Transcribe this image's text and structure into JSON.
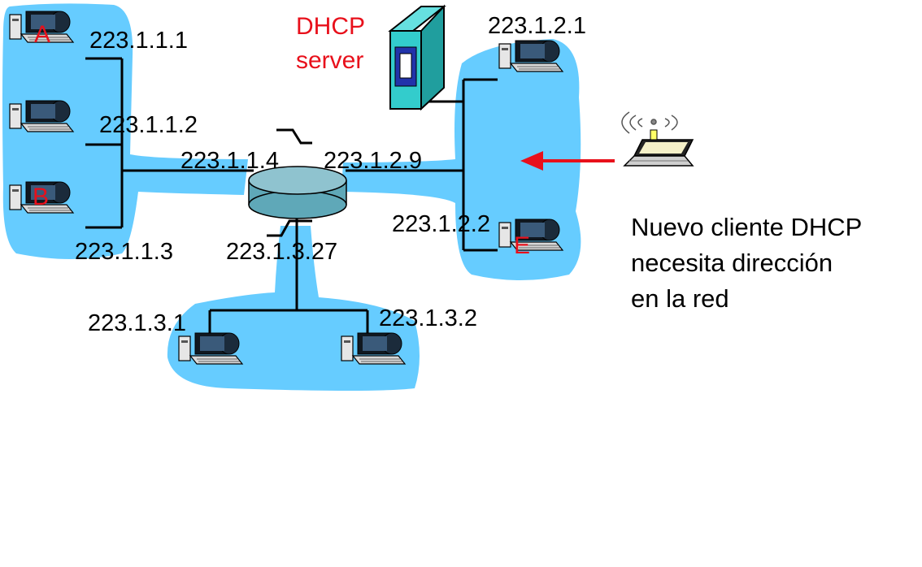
{
  "dhcp_server": {
    "line1": "DHCP",
    "line2": "server"
  },
  "hosts": {
    "a": "A",
    "b": "B",
    "e": "E"
  },
  "ips": {
    "ip_1_1_1": "223.1.1.1",
    "ip_1_1_2": "223.1.1.2",
    "ip_1_1_3": "223.1.1.3",
    "ip_1_1_4": "223.1.1.4",
    "ip_1_2_9": "223.1.2.9",
    "ip_1_2_1": "223.1.2.1",
    "ip_1_2_2": "223.1.2.2",
    "ip_1_3_27": "223.1.3.27",
    "ip_1_3_1": "223.1.3.1",
    "ip_1_3_2": "223.1.3.2"
  },
  "caption": {
    "line1": "Nuevo cliente DHCP",
    "line2": "necesita dirección",
    "line3": "en la red"
  },
  "colors": {
    "subnet": "#66ccff",
    "router": "#5fa8b8",
    "server": "#33cccc",
    "label_red": "#e8101b",
    "arrow": "#e8101b"
  }
}
